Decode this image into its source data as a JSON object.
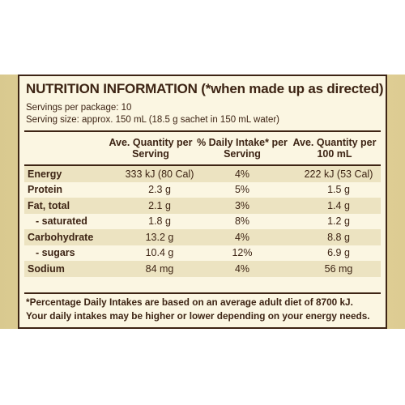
{
  "panel": {
    "title": "NUTRITION INFORMATION (*when made up as directed)",
    "servings_per_package": "Servings per package: 10",
    "serving_size": "Serving size: approx. 150 mL (18.5 g sachet in 150 mL water)"
  },
  "table": {
    "headers": {
      "per_serving": "Ave. Quantity per Serving",
      "daily_intake": "% Daily Intake* per Serving",
      "per_100ml": "Ave. Quantity per 100 mL"
    },
    "rows": [
      {
        "label": "Energy",
        "per_serving": "333 kJ (80 Cal)",
        "daily_intake": "4%",
        "per_100ml": "222 kJ (53 Cal)"
      },
      {
        "label": "Protein",
        "per_serving": "2.3 g",
        "daily_intake": "5%",
        "per_100ml": "1.5 g"
      },
      {
        "label": "Fat, total",
        "per_serving": "2.1 g",
        "daily_intake": "3%",
        "per_100ml": "1.4 g"
      },
      {
        "label": "- saturated",
        "per_serving": "1.8 g",
        "daily_intake": "8%",
        "per_100ml": "1.2 g"
      },
      {
        "label": "Carbohydrate",
        "per_serving": "13.2 g",
        "daily_intake": "4%",
        "per_100ml": "8.8 g"
      },
      {
        "label": "- sugars",
        "per_serving": "10.4 g",
        "daily_intake": "12%",
        "per_100ml": "6.9 g"
      },
      {
        "label": "Sodium",
        "per_serving": "84 mg",
        "daily_intake": "4%",
        "per_100ml": "56 mg"
      }
    ]
  },
  "footnote": {
    "line1": "*Percentage Daily Intakes are based on an average adult diet of 8700 kJ.",
    "line2": "Your daily intakes may be higher or lower depending on your energy needs."
  },
  "colors": {
    "ink": "#3d2414",
    "panel": "#fbf6e2",
    "shade": "#ece3c1",
    "band": "#ddcc92"
  }
}
